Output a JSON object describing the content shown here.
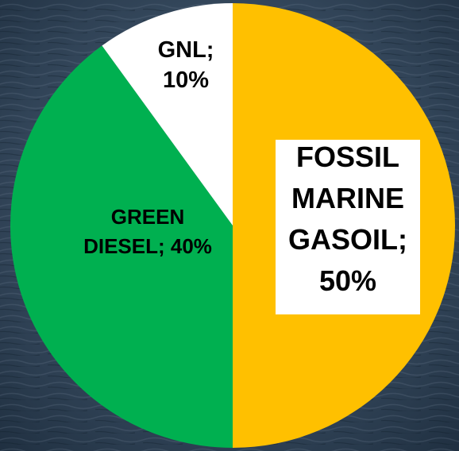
{
  "chart_data": {
    "type": "pie",
    "title": "",
    "slices": [
      {
        "label_lines": [
          "FOSSIL",
          "MARINE",
          "GASOIL;",
          "50%"
        ],
        "category": "FOSSIL MARINE GASOIL",
        "value": 50,
        "color": "#FFC000",
        "label_box": true
      },
      {
        "label_lines": [
          "GREEN",
          "DIESEL; 40%"
        ],
        "category": "GREEN DIESEL",
        "value": 40,
        "color": "#00B050",
        "label_box": false
      },
      {
        "label_lines": [
          "GNL;",
          "10%"
        ],
        "category": "GNL",
        "value": 10,
        "color": "#FFFFFF",
        "label_box": false
      }
    ],
    "start_angle": "12 o'clock",
    "direction": "clockwise",
    "legend": "none",
    "background": "dark blue sea-water photo"
  }
}
